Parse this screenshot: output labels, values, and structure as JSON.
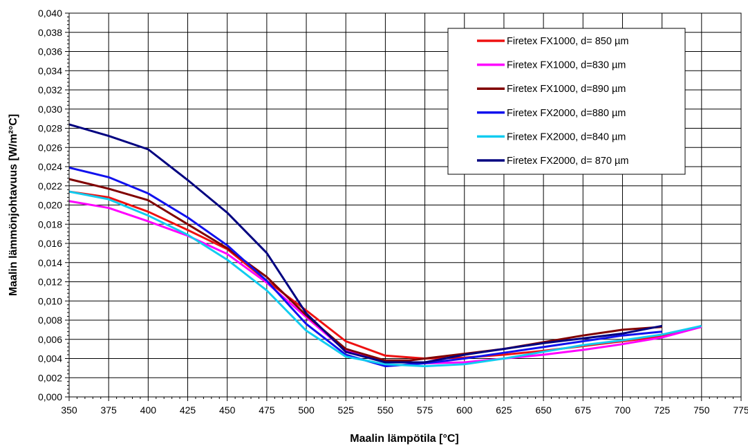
{
  "chart_data": {
    "type": "line",
    "title": "",
    "xlabel": "Maalin lämpötila [°C]",
    "ylabel": "Maalin lämmönjohtavuus [W/m²°C]",
    "xlim": [
      350,
      775
    ],
    "ylim": [
      0,
      0.04
    ],
    "x_ticks": [
      350,
      375,
      400,
      425,
      450,
      475,
      500,
      525,
      550,
      575,
      600,
      625,
      650,
      675,
      700,
      725,
      750,
      775
    ],
    "x_tick_labels": [
      "350",
      "375",
      "400",
      "425",
      "450",
      "475",
      "500",
      "525",
      "550",
      "575",
      "600",
      "625",
      "650",
      "675",
      "700",
      "725",
      "750",
      "775"
    ],
    "y_ticks": [
      0,
      0.002,
      0.004,
      0.006,
      0.008,
      0.01,
      0.012,
      0.014,
      0.016,
      0.018,
      0.02,
      0.022,
      0.024,
      0.026,
      0.028,
      0.03,
      0.032,
      0.034,
      0.036,
      0.038,
      0.04
    ],
    "y_tick_labels": [
      "0,000",
      "0,002",
      "0,004",
      "0,006",
      "0,008",
      "0,010",
      "0,012",
      "0,014",
      "0,016",
      "0,018",
      "0,020",
      "0,022",
      "0,024",
      "0,026",
      "0,028",
      "0,030",
      "0,032",
      "0,034",
      "0,036",
      "0,038",
      "0,040"
    ],
    "grid": true,
    "legend_position": "top-right",
    "series": [
      {
        "name": "Firetex FX1000, d= 850 µm",
        "color": "#ee1111",
        "points": [
          [
            350,
            0.0214
          ],
          [
            375,
            0.0208
          ],
          [
            400,
            0.0193
          ],
          [
            425,
            0.0174
          ],
          [
            450,
            0.0154
          ],
          [
            475,
            0.0121
          ],
          [
            500,
            0.009
          ],
          [
            525,
            0.0058
          ],
          [
            550,
            0.0043
          ],
          [
            575,
            0.004
          ],
          [
            600,
            0.0041
          ],
          [
            625,
            0.0044
          ],
          [
            650,
            0.0048
          ],
          [
            675,
            0.0053
          ],
          [
            700,
            0.0058
          ],
          [
            725,
            0.0063
          ],
          [
            750,
            0.0074
          ]
        ]
      },
      {
        "name": "Firetex FX1000, d=830 µm",
        "color": "#ff00ff",
        "points": [
          [
            350,
            0.0204
          ],
          [
            375,
            0.0197
          ],
          [
            400,
            0.0183
          ],
          [
            425,
            0.0168
          ],
          [
            450,
            0.0149
          ],
          [
            475,
            0.0119
          ],
          [
            500,
            0.0083
          ],
          [
            525,
            0.0048
          ],
          [
            550,
            0.0037
          ],
          [
            575,
            0.0035
          ],
          [
            600,
            0.0036
          ],
          [
            625,
            0.004
          ],
          [
            650,
            0.0044
          ],
          [
            675,
            0.0049
          ],
          [
            700,
            0.0055
          ],
          [
            725,
            0.0062
          ],
          [
            750,
            0.0073
          ]
        ]
      },
      {
        "name": "Firetex FX1000, d=890 µm",
        "color": "#800000",
        "points": [
          [
            350,
            0.0227
          ],
          [
            375,
            0.0217
          ],
          [
            400,
            0.0205
          ],
          [
            425,
            0.018
          ],
          [
            450,
            0.0155
          ],
          [
            475,
            0.0125
          ],
          [
            500,
            0.0085
          ],
          [
            525,
            0.005
          ],
          [
            550,
            0.0038
          ],
          [
            565,
            0.0038
          ],
          [
            575,
            0.004
          ],
          [
            600,
            0.0045
          ],
          [
            625,
            0.005
          ],
          [
            650,
            0.0057
          ],
          [
            675,
            0.0064
          ],
          [
            700,
            0.007
          ],
          [
            725,
            0.0073
          ]
        ]
      },
      {
        "name": "Firetex FX2000, d=880 µm",
        "color": "#1111ee",
        "points": [
          [
            350,
            0.0239
          ],
          [
            375,
            0.0229
          ],
          [
            400,
            0.0212
          ],
          [
            425,
            0.0187
          ],
          [
            450,
            0.0158
          ],
          [
            475,
            0.0121
          ],
          [
            500,
            0.0076
          ],
          [
            525,
            0.0044
          ],
          [
            550,
            0.0032
          ],
          [
            575,
            0.0035
          ],
          [
            600,
            0.004
          ],
          [
            625,
            0.0046
          ],
          [
            650,
            0.0052
          ],
          [
            675,
            0.0058
          ],
          [
            700,
            0.0064
          ],
          [
            725,
            0.0068
          ]
        ]
      },
      {
        "name": "Firetex FX2000, d=840 µm",
        "color": "#11ccf0",
        "points": [
          [
            350,
            0.0214
          ],
          [
            375,
            0.0206
          ],
          [
            400,
            0.0189
          ],
          [
            425,
            0.0169
          ],
          [
            450,
            0.0143
          ],
          [
            475,
            0.0111
          ],
          [
            500,
            0.0069
          ],
          [
            525,
            0.0042
          ],
          [
            550,
            0.0034
          ],
          [
            575,
            0.0032
          ],
          [
            600,
            0.0034
          ],
          [
            625,
            0.004
          ],
          [
            650,
            0.0047
          ],
          [
            675,
            0.0054
          ],
          [
            700,
            0.0059
          ],
          [
            725,
            0.0065
          ],
          [
            750,
            0.0074
          ]
        ]
      },
      {
        "name": "Firetex FX2000, d= 870 µm",
        "color": "#000080",
        "points": [
          [
            350,
            0.0284
          ],
          [
            375,
            0.0272
          ],
          [
            400,
            0.0258
          ],
          [
            425,
            0.0226
          ],
          [
            450,
            0.0192
          ],
          [
            475,
            0.015
          ],
          [
            500,
            0.0087
          ],
          [
            525,
            0.0047
          ],
          [
            550,
            0.0036
          ],
          [
            575,
            0.0036
          ],
          [
            600,
            0.0044
          ],
          [
            625,
            0.005
          ],
          [
            650,
            0.0056
          ],
          [
            675,
            0.0061
          ],
          [
            700,
            0.0066
          ],
          [
            725,
            0.0074
          ]
        ]
      }
    ]
  }
}
